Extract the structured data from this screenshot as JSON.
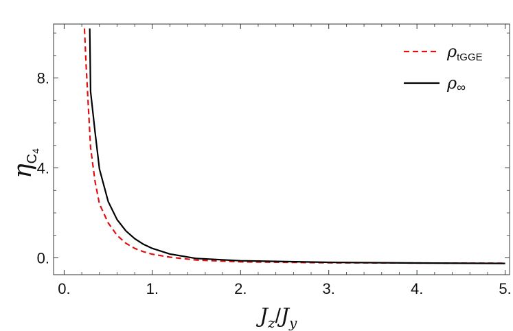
{
  "chart_data": {
    "type": "line",
    "title": "",
    "xlabel": {
      "main": "J",
      "sub1": "z",
      "slash": "/",
      "main2": "J",
      "sub2": "y"
    },
    "ylabel": {
      "main": "η",
      "sub": "C",
      "subsub": "4"
    },
    "xlim": [
      -0.12,
      5.05
    ],
    "ylim": [
      -0.75,
      10.4
    ],
    "xticks": [
      0,
      1,
      2,
      3,
      4,
      5
    ],
    "xtick_labels": [
      "0.",
      "1.",
      "2.",
      "3.",
      "4.",
      "5."
    ],
    "yticks": [
      0,
      4,
      8
    ],
    "ytick_labels": [
      "0.",
      "4.",
      "8."
    ],
    "grid": false,
    "legend_position": "top-right",
    "series": [
      {
        "name": "ρtGGE",
        "legend_main": "ρ",
        "legend_sub": "tGGE",
        "color": "#dd1111",
        "style": "dashed",
        "x": [
          0.23,
          0.25,
          0.3,
          0.35,
          0.4,
          0.5,
          0.6,
          0.7,
          0.8,
          0.9,
          1.0,
          1.2,
          1.5,
          2.0,
          3.0,
          4.0,
          5.0
        ],
        "y": [
          10.2,
          8.5,
          4.9,
          3.4,
          2.4,
          1.55,
          1.0,
          0.65,
          0.42,
          0.27,
          0.16,
          0.03,
          -0.1,
          -0.18,
          -0.22,
          -0.23,
          -0.24
        ]
      },
      {
        "name": "ρ∞",
        "legend_main": "ρ",
        "legend_sub": "∞",
        "color": "#000000",
        "style": "solid",
        "x": [
          0.29,
          0.3,
          0.35,
          0.4,
          0.5,
          0.6,
          0.7,
          0.8,
          0.9,
          1.0,
          1.2,
          1.5,
          2.0,
          3.0,
          4.0,
          5.0
        ],
        "y": [
          10.2,
          7.4,
          5.6,
          3.95,
          2.5,
          1.7,
          1.2,
          0.85,
          0.6,
          0.42,
          0.17,
          -0.03,
          -0.13,
          -0.2,
          -0.23,
          -0.25
        ]
      }
    ]
  }
}
